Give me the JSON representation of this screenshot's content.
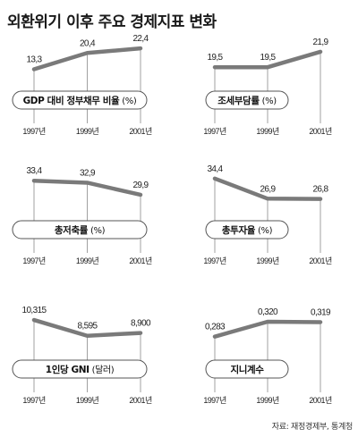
{
  "title": "외환위기 이후 주요 경제지표 변화",
  "source": "자료: 재정경제부, 통계청",
  "chart_data": [
    {
      "type": "line",
      "title": "GDP 대비 정부채무 비율",
      "unit": "(%)",
      "categories": [
        "1997년",
        "1999년",
        "2001년"
      ],
      "labels": [
        "13,3",
        "20,4",
        "22,4"
      ],
      "values": [
        13.3,
        20.4,
        22.4
      ]
    },
    {
      "type": "line",
      "title": "조세부담률",
      "unit": "(%)",
      "categories": [
        "1997년",
        "1999년",
        "2001년"
      ],
      "labels": [
        "19,5",
        "19,5",
        "21,9"
      ],
      "values": [
        19.5,
        19.5,
        21.9
      ]
    },
    {
      "type": "line",
      "title": "총저축률",
      "unit": "(%)",
      "categories": [
        "1997년",
        "1999년",
        "2001년"
      ],
      "labels": [
        "33,4",
        "32,9",
        "29,9"
      ],
      "values": [
        33.4,
        32.9,
        29.9
      ]
    },
    {
      "type": "line",
      "title": "총투자율",
      "unit": "(%)",
      "categories": [
        "1997년",
        "1999년",
        "2001년"
      ],
      "labels": [
        "34,4",
        "26,9",
        "26,8"
      ],
      "values": [
        34.4,
        26.9,
        26.8
      ]
    },
    {
      "type": "line",
      "title": "1인당 GNI",
      "unit": "(달러)",
      "categories": [
        "1997년",
        "1999년",
        "2001년"
      ],
      "labels": [
        "10,315",
        "8,595",
        "8,900"
      ],
      "values": [
        10315,
        8595,
        8900
      ]
    },
    {
      "type": "line",
      "title": "지니계수",
      "unit": "",
      "categories": [
        "1997년",
        "1999년",
        "2001년"
      ],
      "labels": [
        "0,283",
        "0,320",
        "0,319"
      ],
      "values": [
        0.283,
        0.32,
        0.319
      ]
    }
  ]
}
